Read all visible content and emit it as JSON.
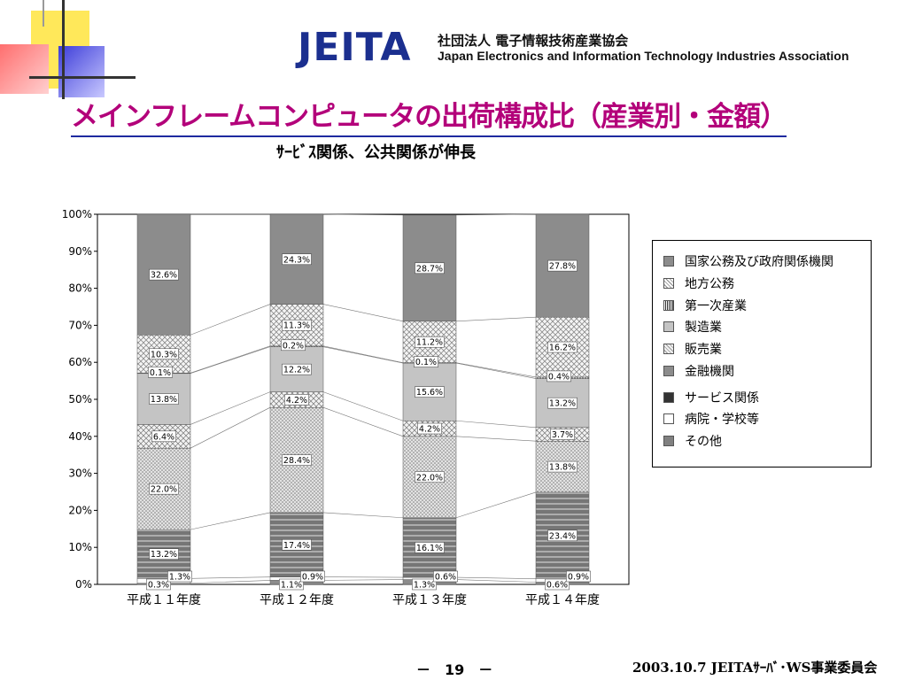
{
  "header": {
    "logo_mark": "JEITA",
    "logo_jp": "社団法人 電子情報技術産業協会",
    "logo_en": "Japan Electronics and Information Technology Industries Association"
  },
  "title": "メインフレームコンピュータの出荷構成比（産業別・金額）",
  "subtitle": "ｻｰﾋﾞｽ関係、公共関係が伸長",
  "chart_data": {
    "type": "bar",
    "stacked": true,
    "categories": [
      "平成１１年度",
      "平成１２年度",
      "平成１３年度",
      "平成１４年度"
    ],
    "y_ticks": [
      "0%",
      "10%",
      "20%",
      "30%",
      "40%",
      "50%",
      "60%",
      "70%",
      "80%",
      "90%",
      "100%"
    ],
    "ylim": [
      0,
      100
    ],
    "legend_position": "right",
    "series": [
      {
        "name": "その他",
        "values": [
          0.3,
          1.1,
          1.3,
          0.6
        ],
        "color": "#8c8c8c",
        "pattern": "solid",
        "labels": [
          "0.3%",
          "1.1%",
          "1.3%",
          "0.6%"
        ]
      },
      {
        "name": "病院・学校等",
        "values": [
          1.3,
          0.9,
          0.6,
          0.9
        ],
        "color": "#ffffff",
        "pattern": "white",
        "labels": [
          "1.3%",
          "0.9%",
          "0.6%",
          "0.9%"
        ]
      },
      {
        "name": "サービス関係",
        "values": [
          13.2,
          17.4,
          16.1,
          23.4
        ],
        "color": "#808080",
        "pattern": "hlines",
        "labels": [
          "13.2%",
          "17.4%",
          "16.1%",
          "23.4%"
        ]
      },
      {
        "name": "金融機関",
        "values": [
          22.0,
          28.4,
          22.0,
          13.8
        ],
        "color": "#d0d0d0",
        "pattern": "dots",
        "labels": [
          "22.0%",
          "28.4%",
          "22.0%",
          "13.8%"
        ]
      },
      {
        "name": "販売業",
        "values": [
          6.4,
          4.2,
          4.2,
          3.7
        ],
        "color": "#e6e6e6",
        "pattern": "cross",
        "labels": [
          "6.4%",
          "4.2%",
          "4.2%",
          "3.7%"
        ]
      },
      {
        "name": "製造業",
        "values": [
          13.8,
          12.2,
          15.6,
          13.2
        ],
        "color": "#c4c4c4",
        "pattern": "solid",
        "labels": [
          "13.8%",
          "12.2%",
          "15.6%",
          "13.2%"
        ]
      },
      {
        "name": "第一次産業",
        "values": [
          0.1,
          0.2,
          0.1,
          0.4
        ],
        "color": "#444444",
        "pattern": "vlines",
        "labels": [
          "0.1%",
          "0.2%",
          "0.1%",
          "0.4%"
        ]
      },
      {
        "name": "地方公務",
        "values": [
          10.3,
          11.3,
          11.2,
          16.2
        ],
        "color": "#eeeeee",
        "pattern": "check",
        "labels": [
          "10.3%",
          "11.3%",
          "11.2%",
          "16.2%"
        ]
      },
      {
        "name": "国家公務及び政府関係機関",
        "values": [
          32.6,
          24.3,
          28.7,
          27.8
        ],
        "color": "#8c8c8c",
        "pattern": "solid",
        "labels": [
          "32.6%",
          "24.3%",
          "28.7%",
          "27.8%"
        ]
      }
    ],
    "legend": [
      {
        "label": "国家公務及び政府関係機関",
        "color": "#8c8c8c"
      },
      {
        "label": "地方公務",
        "color": "#eeeeee",
        "pattern": "check"
      },
      {
        "label": "第一次産業",
        "color": "#ffffff",
        "pattern": "vlines"
      },
      {
        "label": "製造業",
        "color": "#c4c4c4"
      },
      {
        "label": "販売業",
        "color": "#e6e6e6",
        "pattern": "cross"
      },
      {
        "label": "金融機関",
        "color": "#8c8c8c"
      },
      {
        "label": "サービス関係",
        "color": "#333333"
      },
      {
        "label": "病院・学校等",
        "color": "#ffffff"
      },
      {
        "label": "その他",
        "color": "#808080"
      }
    ]
  },
  "footer": {
    "page": "－　19　－",
    "right": "2003.10.7  JEITAｻｰﾊﾞ･WS事業委員会"
  }
}
